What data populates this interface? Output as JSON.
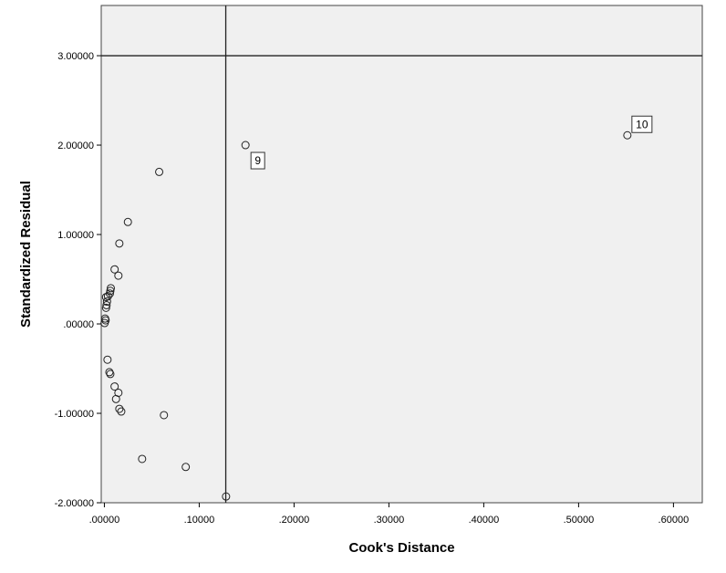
{
  "chart_data": {
    "type": "scatter",
    "title": "",
    "xlabel": "Cook's Distance",
    "ylabel": "Standardized Residual",
    "xlim": [
      -0.0033,
      0.6304
    ],
    "ylim": [
      -2.0,
      3.5617
    ],
    "x_ticks": [
      {
        "value": 0.0,
        "label": ".00000"
      },
      {
        "value": 0.1,
        "label": ".10000"
      },
      {
        "value": 0.2,
        "label": ".20000"
      },
      {
        "value": 0.3,
        "label": ".30000"
      },
      {
        "value": 0.4,
        "label": ".40000"
      },
      {
        "value": 0.5,
        "label": ".50000"
      },
      {
        "value": 0.6,
        "label": ".60000"
      }
    ],
    "y_ticks": [
      {
        "value": -2.0,
        "label": "-2.00000"
      },
      {
        "value": -1.0,
        "label": "-1.00000"
      },
      {
        "value": 0.0,
        "label": ".00000"
      },
      {
        "value": 1.0,
        "label": "1.00000"
      },
      {
        "value": 2.0,
        "label": "2.00000"
      },
      {
        "value": 3.0,
        "label": "3.00000"
      }
    ],
    "reference_lines": {
      "x": 0.128,
      "y": 3.0
    },
    "grid": false,
    "points": [
      {
        "x": 0.5514,
        "y": 2.11,
        "label": "10"
      },
      {
        "x": 0.1488,
        "y": 2.0,
        "label": "9"
      },
      {
        "x": 0.0578,
        "y": 1.7
      },
      {
        "x": 0.0248,
        "y": 1.14
      },
      {
        "x": 0.0158,
        "y": 0.9
      },
      {
        "x": 0.0108,
        "y": 0.61
      },
      {
        "x": 0.0148,
        "y": 0.54
      },
      {
        "x": 0.0068,
        "y": 0.4
      },
      {
        "x": 0.0063,
        "y": 0.37
      },
      {
        "x": 0.0058,
        "y": 0.34
      },
      {
        "x": 0.0038,
        "y": 0.31
      },
      {
        "x": 0.0018,
        "y": 0.3
      },
      {
        "x": 0.0028,
        "y": 0.25
      },
      {
        "x": 0.0023,
        "y": 0.21
      },
      {
        "x": 0.0018,
        "y": 0.18
      },
      {
        "x": 0.0008,
        "y": 0.06
      },
      {
        "x": 0.0013,
        "y": 0.04
      },
      {
        "x": 0.0003,
        "y": 0.01
      },
      {
        "x": 0.0033,
        "y": -0.4
      },
      {
        "x": 0.0053,
        "y": -0.54
      },
      {
        "x": 0.0063,
        "y": -0.56
      },
      {
        "x": 0.0108,
        "y": -0.7
      },
      {
        "x": 0.0148,
        "y": -0.77
      },
      {
        "x": 0.0123,
        "y": -0.84
      },
      {
        "x": 0.0158,
        "y": -0.95
      },
      {
        "x": 0.0178,
        "y": -0.98
      },
      {
        "x": 0.0628,
        "y": -1.02
      },
      {
        "x": 0.0398,
        "y": -1.51
      },
      {
        "x": 0.0858,
        "y": -1.6
      },
      {
        "x": 0.1283,
        "y": -1.93
      }
    ]
  }
}
